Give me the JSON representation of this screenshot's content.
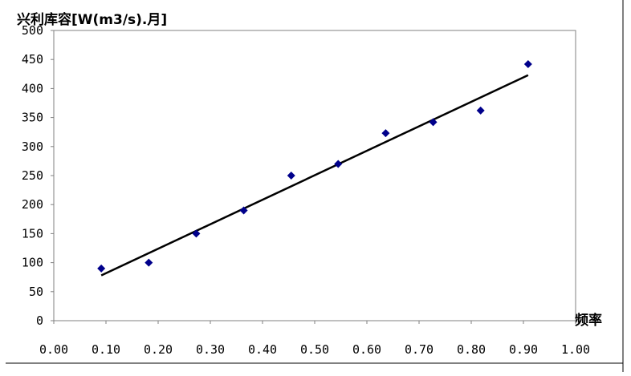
{
  "chart_data": {
    "type": "scatter",
    "title": "兴利库容[W(m3/s).月]",
    "xlabel": "频率",
    "ylabel": "",
    "xlim": [
      0,
      1.0
    ],
    "ylim": [
      0,
      500
    ],
    "x_ticks": [
      "0.00",
      "0.10",
      "0.20",
      "0.30",
      "0.40",
      "0.50",
      "0.60",
      "0.70",
      "0.80",
      "0.90",
      "1.00"
    ],
    "y_ticks": [
      "0",
      "50",
      "100",
      "150",
      "200",
      "250",
      "300",
      "350",
      "400",
      "450",
      "500"
    ],
    "grid": false,
    "legend": "none",
    "series": [
      {
        "type": "scatter",
        "marker": "diamond",
        "color": "#00008B",
        "x": [
          0.091,
          0.182,
          0.273,
          0.364,
          0.455,
          0.545,
          0.636,
          0.727,
          0.818,
          0.909
        ],
        "y": [
          90,
          100,
          150,
          190,
          250,
          270,
          323,
          342,
          362,
          442
        ]
      },
      {
        "type": "line",
        "color": "#000000",
        "x": [
          0.091,
          0.909
        ],
        "y": [
          78,
          423
        ]
      }
    ]
  }
}
